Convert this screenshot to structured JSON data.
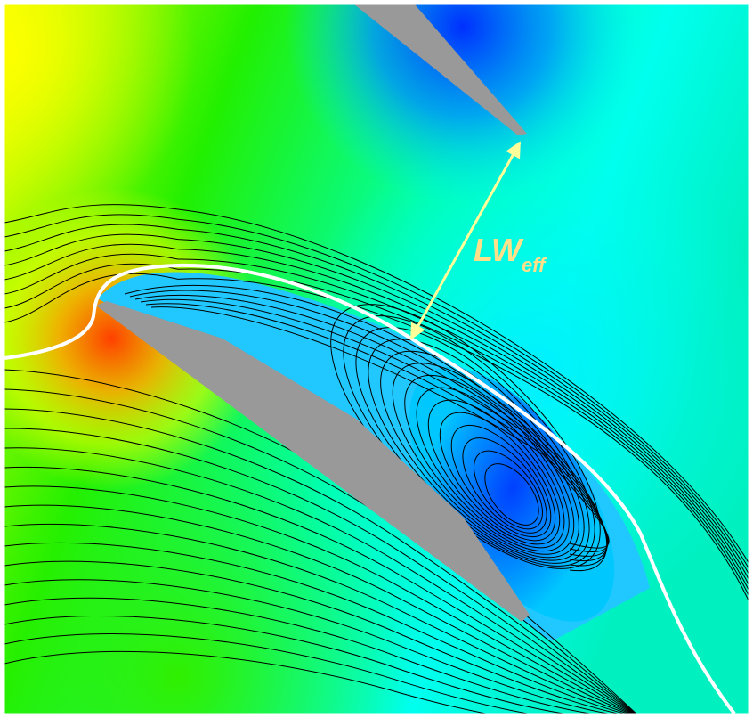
{
  "annotation": {
    "main": "LW",
    "subscript": "eff"
  }
}
